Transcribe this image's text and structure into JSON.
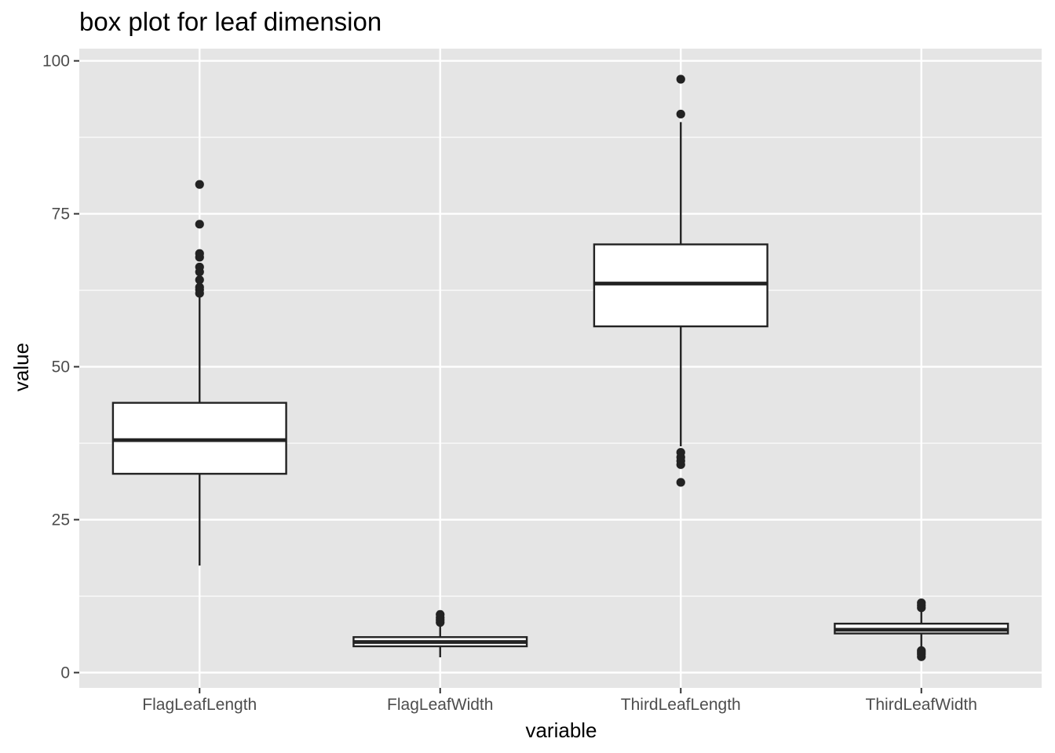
{
  "chart_data": {
    "type": "box",
    "title": "box plot for leaf dimension",
    "xlabel": "variable",
    "ylabel": "value",
    "ylim": [
      -2.5,
      102
    ],
    "y_ticks": [
      0,
      25,
      50,
      75,
      100
    ],
    "grid": true,
    "legend": "none",
    "colors": {
      "panel_bg": "#e5e5e5",
      "grid": "#ffffff",
      "box_fill": "#ffffff",
      "stroke": "#222222",
      "tick_text": "#4d4d4d"
    },
    "categories": [
      "FlagLeafLength",
      "FlagLeafWidth",
      "ThirdLeafLength",
      "ThirdLeafWidth"
    ],
    "boxes": [
      {
        "category": "FlagLeafLength",
        "whisker_low": 17.5,
        "q1": 32.5,
        "median": 38.0,
        "q3": 44.1,
        "whisker_high": 61.8,
        "outliers": [
          62.0,
          62.6,
          63.0,
          64.2,
          65.5,
          66.3,
          67.9,
          68.5,
          73.3,
          79.8
        ]
      },
      {
        "category": "FlagLeafWidth",
        "whisker_low": 2.5,
        "q1": 4.3,
        "median": 5.0,
        "q3": 5.8,
        "whisker_high": 7.9,
        "outliers": [
          8.2,
          8.6,
          9.0,
          9.5
        ]
      },
      {
        "category": "ThirdLeafLength",
        "whisker_low": 37.0,
        "q1": 56.6,
        "median": 63.6,
        "q3": 70.0,
        "whisker_high": 90.0,
        "outliers": [
          31.1,
          34.0,
          34.6,
          35.2,
          36.0,
          91.3,
          97.0
        ]
      },
      {
        "category": "ThirdLeafWidth",
        "whisker_low": 4.0,
        "q1": 6.4,
        "median": 7.0,
        "q3": 8.0,
        "whisker_high": 10.0,
        "outliers": [
          2.6,
          3.0,
          3.3,
          3.6,
          10.6,
          11.0,
          11.4
        ]
      }
    ]
  }
}
